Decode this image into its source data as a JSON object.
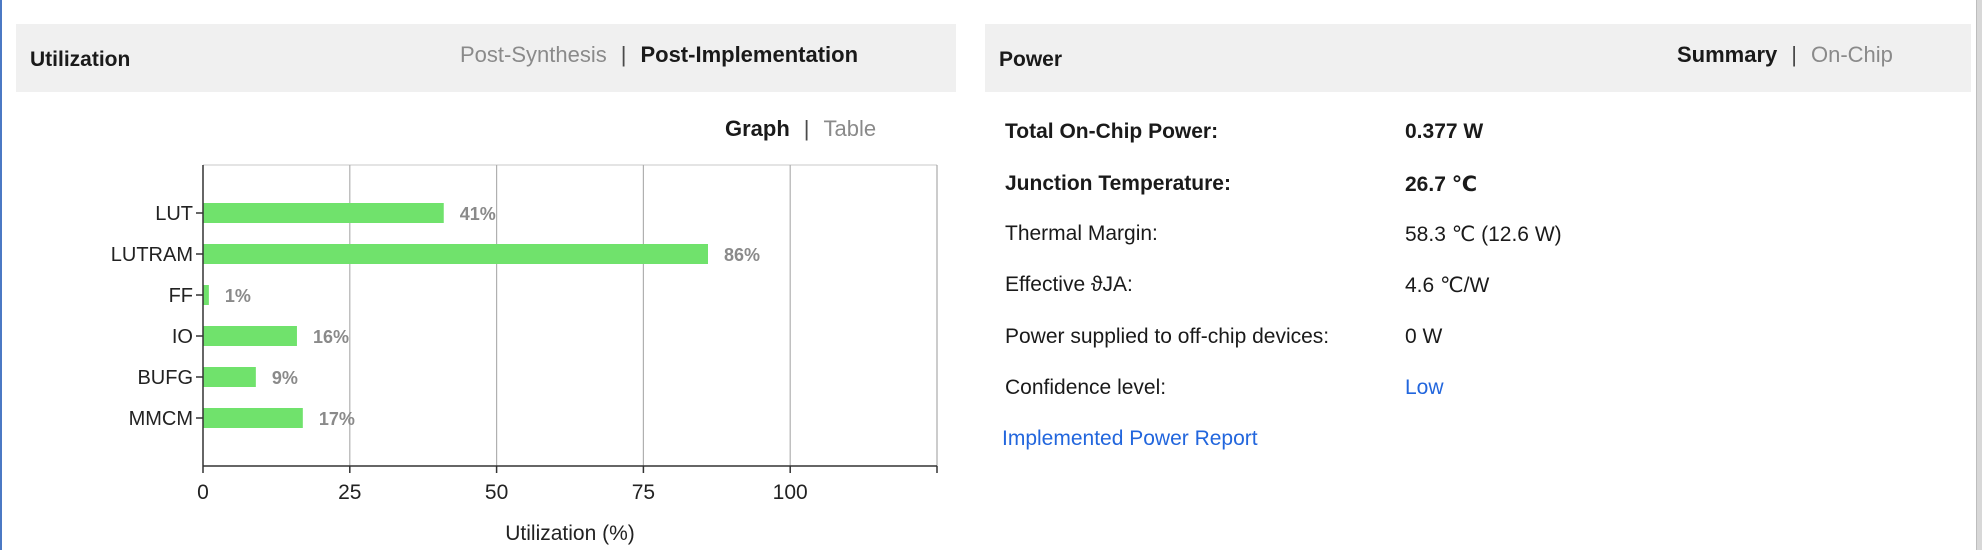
{
  "utilization": {
    "title": "Utilization",
    "tabs": [
      {
        "label": "Post-Synthesis",
        "active": false
      },
      {
        "label": "Post-Implementation",
        "active": true
      }
    ],
    "view_tabs": [
      {
        "label": "Graph",
        "active": true
      },
      {
        "label": "Table",
        "active": false
      }
    ]
  },
  "power": {
    "title": "Power",
    "tabs": [
      {
        "label": "Summary",
        "active": true
      },
      {
        "label": "On-Chip",
        "active": false
      }
    ],
    "rows": [
      {
        "label": "Total On-Chip Power:",
        "value": "0.377 W",
        "bold": true
      },
      {
        "label": "Junction Temperature:",
        "value": "26.7 ℃",
        "bold": true
      },
      {
        "label": "Thermal Margin:",
        "value": "58.3 ℃ (12.6 W)",
        "bold": false
      },
      {
        "label": "Effective ϑJA:",
        "value": "4.6 ℃/W",
        "bold": false
      },
      {
        "label": "Power supplied to off-chip devices:",
        "value": "0 W",
        "bold": false
      },
      {
        "label": "Confidence level:",
        "value": "Low",
        "bold": false,
        "link": true
      }
    ],
    "report_link": "Implemented Power Report"
  },
  "chart_data": {
    "type": "bar",
    "orientation": "horizontal",
    "categories": [
      "LUT",
      "LUTRAM",
      "FF",
      "IO",
      "BUFG",
      "MMCM"
    ],
    "values": [
      41,
      86,
      1,
      16,
      9,
      17
    ],
    "value_labels": [
      "41%",
      "86%",
      "1%",
      "16%",
      "9%",
      "17%"
    ],
    "xlabel": "Utilization (%)",
    "xlim": [
      0,
      125
    ],
    "xticks": [
      0,
      25,
      50,
      75,
      100
    ],
    "grid": true,
    "bar_color": "#70e26c"
  },
  "colors": {
    "header_bg": "#f0f0f0",
    "link": "#2266dd",
    "inactive_tab": "#8a8a8a"
  }
}
